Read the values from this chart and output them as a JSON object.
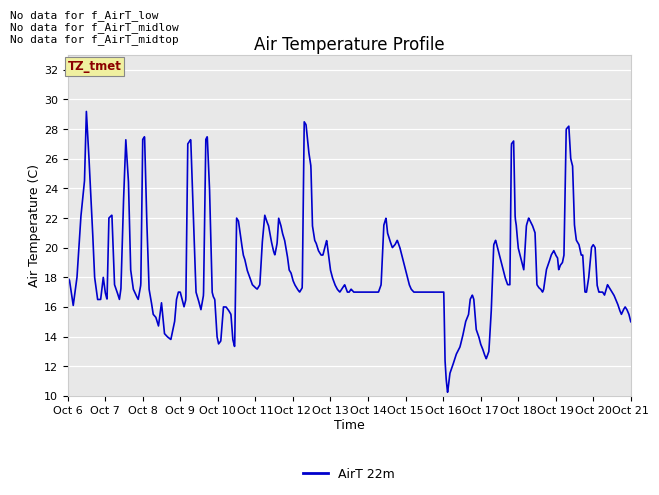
{
  "title": "Air Temperature Profile",
  "xlabel": "Time",
  "ylabel": "Air Temperature (C)",
  "ylim": [
    10,
    33
  ],
  "yticks": [
    10,
    12,
    14,
    16,
    18,
    20,
    22,
    24,
    26,
    28,
    30,
    32
  ],
  "line_color": "#0000cc",
  "line_width": 1.2,
  "bg_color": "#e8e8e8",
  "legend_label": "AirT 22m",
  "annotations": [
    "No data for f_AirT_low",
    "No data for f_AirT_midlow",
    "No data for f_AirT_midtop"
  ],
  "tz_label": "TZ_tmet",
  "x_tick_labels": [
    "Oct 6",
    "Oct 7",
    "Oct 8",
    "Oct 9",
    "Oct 10",
    "Oct 11",
    "Oct 12",
    "Oct 13",
    "Oct 14",
    "Oct 15",
    "Oct 16",
    "Oct 17",
    "Oct 18",
    "Oct 19",
    "Oct 20",
    "Oct 21"
  ],
  "keypoints": [
    [
      0.0,
      18.0
    ],
    [
      0.05,
      17.8
    ],
    [
      0.15,
      16.1
    ],
    [
      0.25,
      18.0
    ],
    [
      0.35,
      22.0
    ],
    [
      0.45,
      24.5
    ],
    [
      0.5,
      29.2
    ],
    [
      0.55,
      27.0
    ],
    [
      0.65,
      22.0
    ],
    [
      0.72,
      18.0
    ],
    [
      0.8,
      16.5
    ],
    [
      0.88,
      16.5
    ],
    [
      0.95,
      18.0
    ],
    [
      1.0,
      17.0
    ],
    [
      1.05,
      16.5
    ],
    [
      1.1,
      22.0
    ],
    [
      1.18,
      22.2
    ],
    [
      1.25,
      17.5
    ],
    [
      1.32,
      17.0
    ],
    [
      1.38,
      16.5
    ],
    [
      1.42,
      17.2
    ],
    [
      1.48,
      22.5
    ],
    [
      1.55,
      27.3
    ],
    [
      1.62,
      24.5
    ],
    [
      1.68,
      18.5
    ],
    [
      1.75,
      17.2
    ],
    [
      1.82,
      16.8
    ],
    [
      1.88,
      16.5
    ],
    [
      1.95,
      17.5
    ],
    [
      2.0,
      27.3
    ],
    [
      2.05,
      27.5
    ],
    [
      2.1,
      22.5
    ],
    [
      2.17,
      17.2
    ],
    [
      2.22,
      16.5
    ],
    [
      2.28,
      15.5
    ],
    [
      2.35,
      15.3
    ],
    [
      2.42,
      14.7
    ],
    [
      2.5,
      16.3
    ],
    [
      2.58,
      14.2
    ],
    [
      2.65,
      14.0
    ],
    [
      2.75,
      13.8
    ],
    [
      2.85,
      15.0
    ],
    [
      2.9,
      16.5
    ],
    [
      2.95,
      17.0
    ],
    [
      3.0,
      17.0
    ],
    [
      3.05,
      16.5
    ],
    [
      3.1,
      16.0
    ],
    [
      3.15,
      16.5
    ],
    [
      3.2,
      27.0
    ],
    [
      3.28,
      27.3
    ],
    [
      3.35,
      22.0
    ],
    [
      3.42,
      17.0
    ],
    [
      3.48,
      16.5
    ],
    [
      3.55,
      15.8
    ],
    [
      3.62,
      16.8
    ],
    [
      3.68,
      27.3
    ],
    [
      3.72,
      27.5
    ],
    [
      3.78,
      24.0
    ],
    [
      3.85,
      17.0
    ],
    [
      3.88,
      16.7
    ],
    [
      3.92,
      16.5
    ],
    [
      3.98,
      14.0
    ],
    [
      4.02,
      13.5
    ],
    [
      4.08,
      13.7
    ],
    [
      4.15,
      16.0
    ],
    [
      4.22,
      16.0
    ],
    [
      4.28,
      15.8
    ],
    [
      4.35,
      15.5
    ],
    [
      4.4,
      13.8
    ],
    [
      4.45,
      13.3
    ],
    [
      4.5,
      22.0
    ],
    [
      4.55,
      21.8
    ],
    [
      4.62,
      20.5
    ],
    [
      4.68,
      19.5
    ],
    [
      4.72,
      19.2
    ],
    [
      4.78,
      18.5
    ],
    [
      4.85,
      18.0
    ],
    [
      4.92,
      17.5
    ],
    [
      5.0,
      17.3
    ],
    [
      5.05,
      17.2
    ],
    [
      5.12,
      17.5
    ],
    [
      5.18,
      20.2
    ],
    [
      5.25,
      22.2
    ],
    [
      5.3,
      21.8
    ],
    [
      5.35,
      21.5
    ],
    [
      5.42,
      20.5
    ],
    [
      5.48,
      19.8
    ],
    [
      5.52,
      19.5
    ],
    [
      5.58,
      20.3
    ],
    [
      5.62,
      22.0
    ],
    [
      5.68,
      21.5
    ],
    [
      5.72,
      21.0
    ],
    [
      5.78,
      20.5
    ],
    [
      5.85,
      19.5
    ],
    [
      5.9,
      18.5
    ],
    [
      5.95,
      18.3
    ],
    [
      6.0,
      17.8
    ],
    [
      6.05,
      17.5
    ],
    [
      6.12,
      17.2
    ],
    [
      6.18,
      17.0
    ],
    [
      6.25,
      17.3
    ],
    [
      6.3,
      28.5
    ],
    [
      6.35,
      28.3
    ],
    [
      6.42,
      26.5
    ],
    [
      6.48,
      25.5
    ],
    [
      6.52,
      21.5
    ],
    [
      6.58,
      20.5
    ],
    [
      6.62,
      20.3
    ],
    [
      6.68,
      19.8
    ],
    [
      6.75,
      19.5
    ],
    [
      6.8,
      19.5
    ],
    [
      6.85,
      20.0
    ],
    [
      6.9,
      20.5
    ],
    [
      6.95,
      19.5
    ],
    [
      7.0,
      18.5
    ],
    [
      7.05,
      18.0
    ],
    [
      7.12,
      17.5
    ],
    [
      7.18,
      17.2
    ],
    [
      7.25,
      17.0
    ],
    [
      7.3,
      17.2
    ],
    [
      7.38,
      17.5
    ],
    [
      7.45,
      17.0
    ],
    [
      7.5,
      17.0
    ],
    [
      7.55,
      17.2
    ],
    [
      7.62,
      17.0
    ],
    [
      7.68,
      17.0
    ],
    [
      7.75,
      17.0
    ],
    [
      7.82,
      17.0
    ],
    [
      7.88,
      17.0
    ],
    [
      7.95,
      17.0
    ],
    [
      8.0,
      17.0
    ],
    [
      8.05,
      17.0
    ],
    [
      8.1,
      17.0
    ],
    [
      8.15,
      17.0
    ],
    [
      8.22,
      17.0
    ],
    [
      8.28,
      17.0
    ],
    [
      8.35,
      17.5
    ],
    [
      8.42,
      21.5
    ],
    [
      8.48,
      22.0
    ],
    [
      8.52,
      21.0
    ],
    [
      8.58,
      20.5
    ],
    [
      8.65,
      20.0
    ],
    [
      8.72,
      20.2
    ],
    [
      8.78,
      20.5
    ],
    [
      8.85,
      20.0
    ],
    [
      8.9,
      19.5
    ],
    [
      8.95,
      19.0
    ],
    [
      9.0,
      18.5
    ],
    [
      9.05,
      18.0
    ],
    [
      9.1,
      17.5
    ],
    [
      9.15,
      17.2
    ],
    [
      9.22,
      17.0
    ],
    [
      9.3,
      17.0
    ],
    [
      9.38,
      17.0
    ],
    [
      9.45,
      17.0
    ],
    [
      9.52,
      17.0
    ],
    [
      9.6,
      17.0
    ],
    [
      9.68,
      17.0
    ],
    [
      9.75,
      17.0
    ],
    [
      9.82,
      17.0
    ],
    [
      9.9,
      17.0
    ],
    [
      9.95,
      17.0
    ],
    [
      10.0,
      17.0
    ],
    [
      10.02,
      17.0
    ],
    [
      10.05,
      12.5
    ],
    [
      10.08,
      11.2
    ],
    [
      10.12,
      10.2
    ],
    [
      10.18,
      11.5
    ],
    [
      10.25,
      12.0
    ],
    [
      10.35,
      12.8
    ],
    [
      10.45,
      13.3
    ],
    [
      10.52,
      14.0
    ],
    [
      10.6,
      15.0
    ],
    [
      10.68,
      15.5
    ],
    [
      10.72,
      16.5
    ],
    [
      10.78,
      16.8
    ],
    [
      10.82,
      16.5
    ],
    [
      10.88,
      14.5
    ],
    [
      10.95,
      14.0
    ],
    [
      11.0,
      13.5
    ],
    [
      11.05,
      13.2
    ],
    [
      11.1,
      12.8
    ],
    [
      11.15,
      12.5
    ],
    [
      11.22,
      13.0
    ],
    [
      11.28,
      15.5
    ],
    [
      11.35,
      20.2
    ],
    [
      11.4,
      20.5
    ],
    [
      11.45,
      20.0
    ],
    [
      11.5,
      19.5
    ],
    [
      11.55,
      19.0
    ],
    [
      11.6,
      18.5
    ],
    [
      11.65,
      18.0
    ],
    [
      11.72,
      17.5
    ],
    [
      11.78,
      17.5
    ],
    [
      11.82,
      27.0
    ],
    [
      11.88,
      27.2
    ],
    [
      11.92,
      22.0
    ],
    [
      11.95,
      21.5
    ],
    [
      12.0,
      20.0
    ],
    [
      12.05,
      19.5
    ],
    [
      12.1,
      19.0
    ],
    [
      12.15,
      18.5
    ],
    [
      12.22,
      21.5
    ],
    [
      12.28,
      22.0
    ],
    [
      12.32,
      21.8
    ],
    [
      12.38,
      21.5
    ],
    [
      12.42,
      21.2
    ],
    [
      12.45,
      21.0
    ],
    [
      12.5,
      17.5
    ],
    [
      12.55,
      17.3
    ],
    [
      12.6,
      17.2
    ],
    [
      12.65,
      17.0
    ],
    [
      12.68,
      17.2
    ],
    [
      12.75,
      18.5
    ],
    [
      12.82,
      19.0
    ],
    [
      12.88,
      19.5
    ],
    [
      12.95,
      19.8
    ],
    [
      13.0,
      19.5
    ],
    [
      13.05,
      19.3
    ],
    [
      13.08,
      18.5
    ],
    [
      13.12,
      18.8
    ],
    [
      13.18,
      19.0
    ],
    [
      13.22,
      19.5
    ],
    [
      13.28,
      28.0
    ],
    [
      13.35,
      28.2
    ],
    [
      13.4,
      26.0
    ],
    [
      13.45,
      25.5
    ],
    [
      13.5,
      21.5
    ],
    [
      13.55,
      20.5
    ],
    [
      13.62,
      20.2
    ],
    [
      13.68,
      19.5
    ],
    [
      13.72,
      19.5
    ],
    [
      13.78,
      17.0
    ],
    [
      13.82,
      17.0
    ],
    [
      13.88,
      18.0
    ],
    [
      13.95,
      20.0
    ],
    [
      14.0,
      20.2
    ],
    [
      14.05,
      20.0
    ],
    [
      14.08,
      18.5
    ],
    [
      14.1,
      17.5
    ],
    [
      14.15,
      17.0
    ],
    [
      14.2,
      17.0
    ],
    [
      14.25,
      17.0
    ],
    [
      14.3,
      16.8
    ],
    [
      14.38,
      17.5
    ],
    [
      14.45,
      17.2
    ],
    [
      14.5,
      17.0
    ],
    [
      14.55,
      16.8
    ],
    [
      14.6,
      16.5
    ],
    [
      14.65,
      16.2
    ],
    [
      14.7,
      15.8
    ],
    [
      14.75,
      15.5
    ],
    [
      14.8,
      15.8
    ],
    [
      14.85,
      16.0
    ],
    [
      14.9,
      15.8
    ],
    [
      14.95,
      15.5
    ],
    [
      15.0,
      15.0
    ]
  ]
}
